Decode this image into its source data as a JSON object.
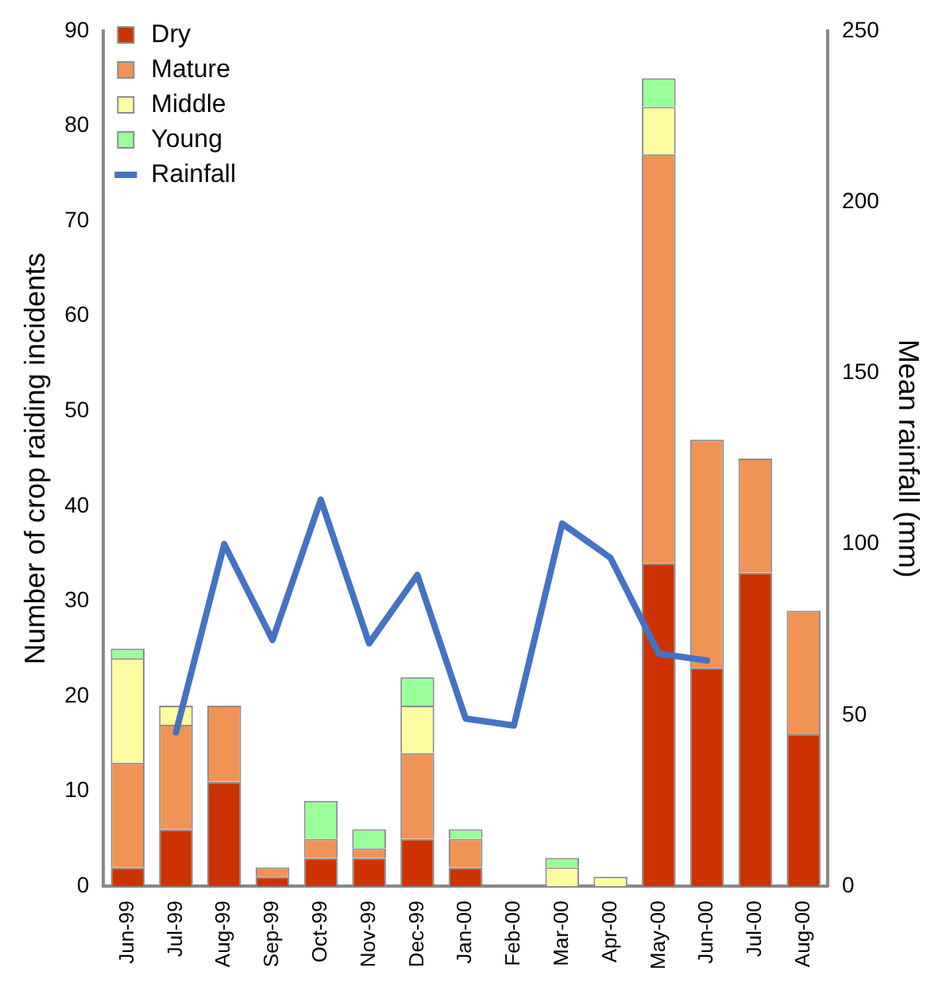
{
  "chart_data": {
    "type": "bar",
    "stacked": true,
    "categories": [
      "Jun-99",
      "Jul-99",
      "Aug-99",
      "Sep-99",
      "Oct-99",
      "Nov-99",
      "Dec-99",
      "Jan-00",
      "Feb-00",
      "Mar-00",
      "Apr-00",
      "May-00",
      "Jun-00",
      "Jul-00",
      "Aug-00"
    ],
    "series": [
      {
        "name": "Dry",
        "color": "#cc3300",
        "values": [
          2,
          6,
          11,
          1,
          3,
          3,
          5,
          2,
          0,
          0,
          0,
          34,
          23,
          33,
          16
        ]
      },
      {
        "name": "Mature",
        "color": "#f09455",
        "values": [
          11,
          11,
          8,
          1,
          2,
          1,
          9,
          3,
          0,
          0,
          0,
          43,
          24,
          12,
          13
        ]
      },
      {
        "name": "Middle",
        "color": "#fdfba0",
        "values": [
          11,
          2,
          0,
          0,
          0,
          0,
          5,
          0,
          0,
          2,
          1,
          5,
          0,
          0,
          0
        ]
      },
      {
        "name": "Young",
        "color": "#99ff99",
        "values": [
          1,
          0,
          0,
          0,
          4,
          2,
          3,
          1,
          0,
          1,
          0,
          3,
          0,
          0,
          0
        ]
      },
      {
        "name": "Rainfall",
        "type": "line",
        "axis": "y2",
        "color": "#4472c4",
        "values": [
          null,
          45,
          100,
          72,
          113,
          71,
          91,
          49,
          47,
          106,
          96,
          68,
          66,
          null,
          null
        ]
      }
    ],
    "ylabel": "Number of crop raiding incidents",
    "y2label": "Mean rainfall (mm)",
    "ylim": [
      0,
      90
    ],
    "yticks": [
      0,
      10,
      20,
      30,
      40,
      50,
      60,
      70,
      80,
      90
    ],
    "y2lim": [
      0,
      250
    ],
    "y2ticks": [
      0,
      50,
      100,
      150,
      200,
      250
    ],
    "grid": false,
    "legend": "top left",
    "marker": "none"
  }
}
